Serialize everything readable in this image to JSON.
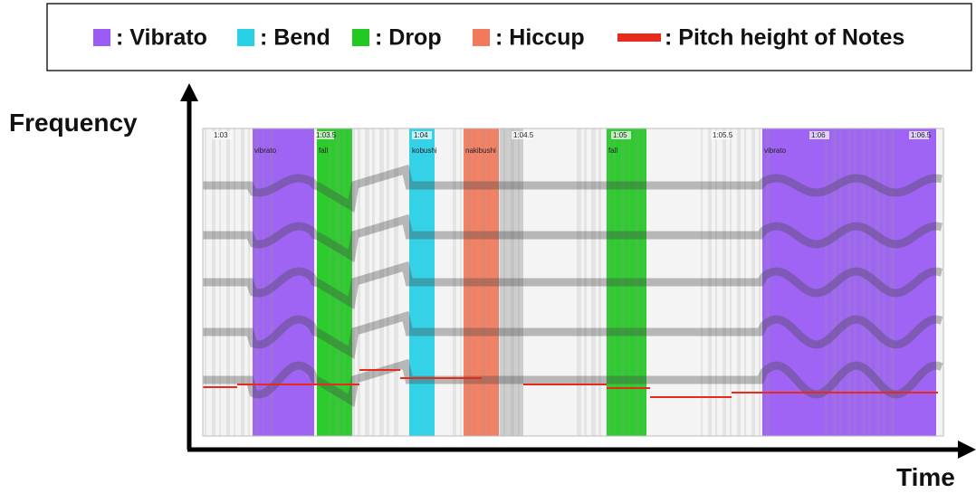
{
  "legend": {
    "items": [
      {
        "label": ": Vibrato"
      },
      {
        "label": ": Bend"
      },
      {
        "label": ": Drop"
      },
      {
        "label": ": Hiccup"
      },
      {
        "label": ": Pitch height of Notes"
      }
    ]
  },
  "axes": {
    "y_label": "Frequency",
    "x_label": "Time"
  },
  "time_marks": [
    "1:03",
    "1:03.5",
    "1:04",
    "1:04.5",
    "1:05",
    "1:05.5",
    "1:06",
    "1:06.5"
  ],
  "regions": [
    "vibrato",
    "fall",
    "kobushi",
    "nakibushi",
    "fall",
    "vibrato"
  ]
}
